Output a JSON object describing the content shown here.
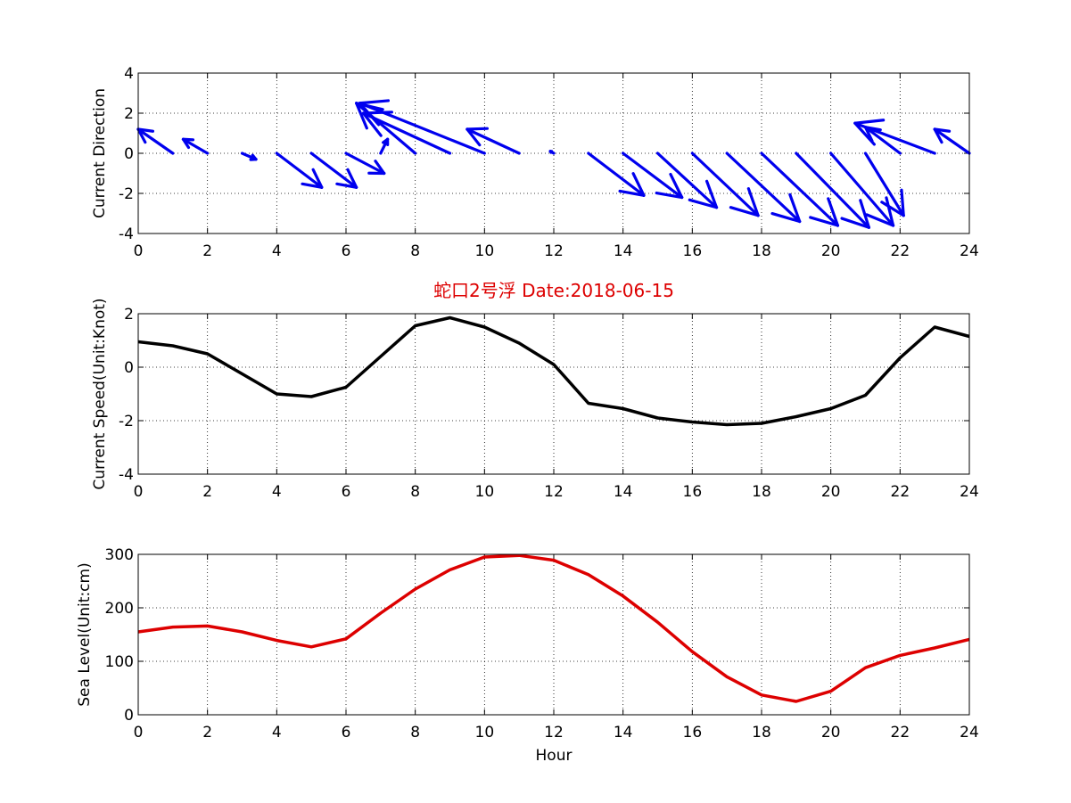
{
  "colors": {
    "arrows": "#0000ee",
    "speed": "#000000",
    "sea_level": "#dd0000",
    "title": "#dd0000"
  },
  "chart_data": [
    {
      "type": "quiver",
      "ylabel": "Current Direction",
      "xlim": [
        0,
        24
      ],
      "ylim": [
        -4,
        4
      ],
      "x_ticks": [
        "0",
        "2",
        "4",
        "6",
        "8",
        "10",
        "12",
        "14",
        "16",
        "18",
        "20",
        "22",
        "24"
      ],
      "y_ticks": [
        "-4",
        "-2",
        "0",
        "2",
        "4"
      ],
      "grid": true,
      "arrows": [
        {
          "x": 1,
          "u": -1.0,
          "v": 1.2
        },
        {
          "x": 2,
          "u": -0.7,
          "v": 0.7
        },
        {
          "x": 3,
          "u": 0.4,
          "v": -0.3
        },
        {
          "x": 4,
          "u": 1.3,
          "v": -1.7
        },
        {
          "x": 5,
          "u": 1.3,
          "v": -1.7
        },
        {
          "x": 6,
          "u": 1.1,
          "v": -1.0
        },
        {
          "x": 7,
          "u": 0.2,
          "v": 0.7
        },
        {
          "x": 8,
          "u": -1.7,
          "v": 2.5
        },
        {
          "x": 9,
          "u": -2.5,
          "v": 2.0
        },
        {
          "x": 10,
          "u": -3.6,
          "v": 2.5
        },
        {
          "x": 11,
          "u": -1.5,
          "v": 1.2
        },
        {
          "x": 12,
          "u": -0.1,
          "v": 0.1
        },
        {
          "x": 13,
          "u": 1.6,
          "v": -2.1
        },
        {
          "x": 14,
          "u": 1.7,
          "v": -2.2
        },
        {
          "x": 15,
          "u": 1.7,
          "v": -2.7
        },
        {
          "x": 16,
          "u": 1.9,
          "v": -3.1
        },
        {
          "x": 17,
          "u": 2.1,
          "v": -3.4
        },
        {
          "x": 18,
          "u": 2.2,
          "v": -3.6
        },
        {
          "x": 19,
          "u": 2.1,
          "v": -3.7
        },
        {
          "x": 20,
          "u": 1.8,
          "v": -3.6
        },
        {
          "x": 21,
          "u": 1.1,
          "v": -3.1
        },
        {
          "x": 22,
          "u": -1.0,
          "v": 1.3
        },
        {
          "x": 23,
          "u": -2.3,
          "v": 1.5
        },
        {
          "x": 24,
          "u": -1.0,
          "v": 1.2
        }
      ]
    },
    {
      "type": "line",
      "title": "蛇口2号浮   Date:2018-06-15",
      "ylabel": "Current Speed(Unit:Knot)",
      "xlim": [
        0,
        24
      ],
      "ylim": [
        -4,
        2
      ],
      "x_ticks": [
        "0",
        "2",
        "4",
        "6",
        "8",
        "10",
        "12",
        "14",
        "16",
        "18",
        "20",
        "22",
        "24"
      ],
      "y_ticks": [
        "-4",
        "-2",
        "0",
        "2"
      ],
      "grid": true,
      "x": [
        0,
        1,
        2,
        3,
        4,
        5,
        6,
        7,
        8,
        9,
        10,
        11,
        12,
        13,
        14,
        15,
        16,
        17,
        18,
        19,
        20,
        21,
        22,
        23,
        24
      ],
      "values": [
        0.95,
        0.8,
        0.5,
        -0.25,
        -1.0,
        -1.1,
        -0.75,
        0.4,
        1.55,
        1.85,
        1.5,
        0.9,
        0.1,
        -1.35,
        -1.55,
        -1.9,
        -2.05,
        -2.15,
        -2.1,
        -1.85,
        -1.55,
        -1.05,
        0.35,
        1.5,
        1.15
      ]
    },
    {
      "type": "line",
      "xlabel": "Hour",
      "ylabel": "Sea Level(Unit:cm)",
      "xlim": [
        0,
        24
      ],
      "ylim": [
        0,
        300
      ],
      "x_ticks": [
        "0",
        "2",
        "4",
        "6",
        "8",
        "10",
        "12",
        "14",
        "16",
        "18",
        "20",
        "22",
        "24"
      ],
      "y_ticks": [
        "0",
        "100",
        "200",
        "300"
      ],
      "grid": true,
      "x": [
        0,
        1,
        2,
        3,
        4,
        5,
        6,
        7,
        8,
        9,
        10,
        11,
        12,
        13,
        14,
        15,
        16,
        17,
        18,
        19,
        20,
        21,
        22,
        23,
        24
      ],
      "values": [
        155,
        164,
        166,
        155,
        139,
        127,
        142,
        190,
        235,
        271,
        295,
        298,
        289,
        262,
        222,
        173,
        118,
        71,
        37,
        25,
        44,
        88,
        111,
        125,
        141
      ]
    }
  ]
}
